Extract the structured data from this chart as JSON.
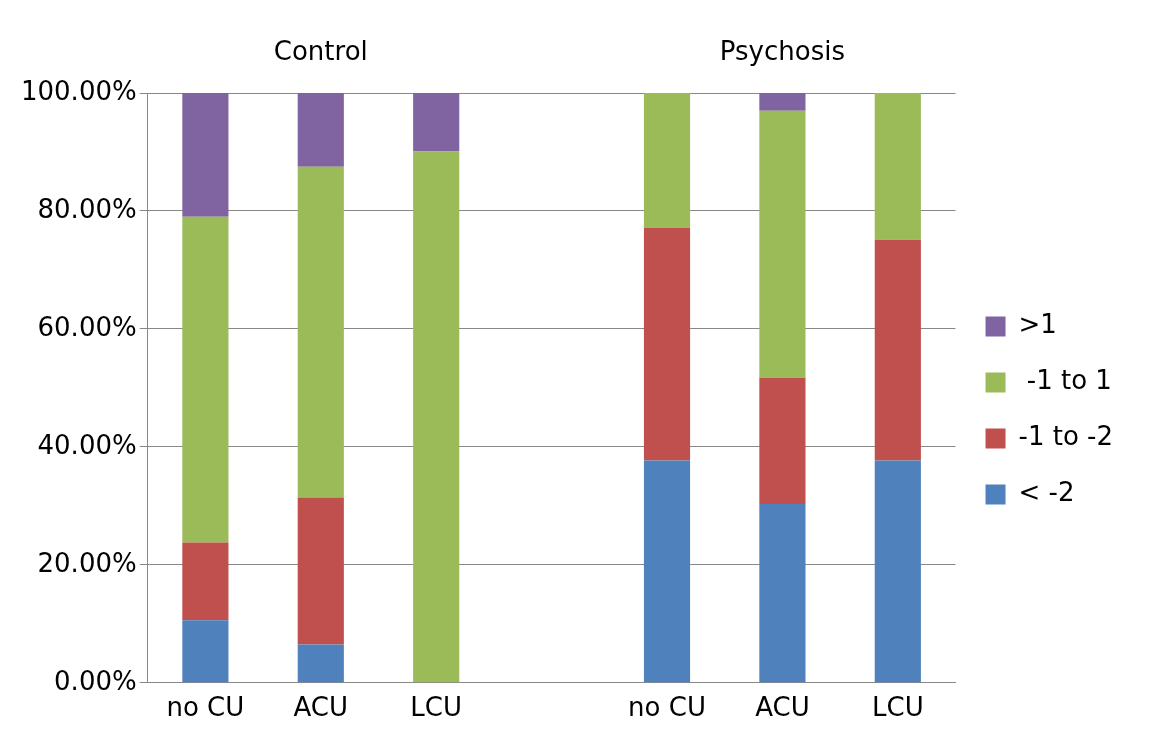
{
  "chart_data": {
    "type": "bar",
    "stacked": true,
    "categories": [
      "no CU",
      "ACU",
      "LCU",
      null,
      "no CU",
      "ACU",
      "LCU"
    ],
    "series": [
      {
        "name": "< -2",
        "color": "#4f81bd",
        "values": [
          10.6,
          6.5,
          0,
          null,
          37.7,
          30.3,
          37.7
        ]
      },
      {
        "name": "-1 to -2",
        "color": "#c0504d",
        "values": [
          13.2,
          24.9,
          0,
          null,
          39.4,
          21.4,
          37.4
        ]
      },
      {
        "name": " -1 to 1",
        "color": "#9bbb59",
        "values": [
          55.2,
          56.1,
          90.1,
          null,
          22.9,
          45.3,
          24.9
        ]
      },
      {
        "name": ">1",
        "color": "#8064a2",
        "values": [
          21,
          12.5,
          9.9,
          null,
          0,
          3,
          0
        ]
      }
    ],
    "ylim": [
      0,
      100
    ],
    "yticks": [
      {
        "value": 0,
        "label": "0.00%"
      },
      {
        "value": 20,
        "label": "20.00%"
      },
      {
        "value": 40,
        "label": "40.00%"
      },
      {
        "value": 60,
        "label": "60.00%"
      },
      {
        "value": 80,
        "label": "80.00%"
      },
      {
        "value": 100,
        "label": "100.00%"
      }
    ],
    "grid": "y",
    "legend": "right",
    "annotations": [
      "Control",
      "Psychosis"
    ]
  }
}
